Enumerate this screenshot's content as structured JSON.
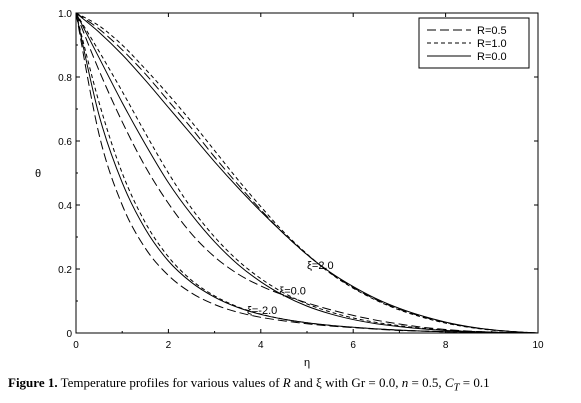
{
  "chart_data": {
    "type": "line",
    "xlabel": "η",
    "ylabel": "θ",
    "xlim": [
      0,
      10
    ],
    "ylim": [
      0,
      1
    ],
    "xticks": [
      "0",
      "2",
      "4",
      "6",
      "8",
      "10"
    ],
    "yticks": [
      "0",
      "0.2",
      "0.4",
      "0.6",
      "0.8",
      "1.0"
    ],
    "grid": false,
    "legend_position": "top-right",
    "legend": [
      {
        "label": "R=0.5",
        "dash": "long-dash"
      },
      {
        "label": "R=1.0",
        "dash": "short-dash"
      },
      {
        "label": "R=0.0",
        "dash": "solid"
      }
    ],
    "annotations": [
      {
        "text": "ξ=2.0",
        "x": 5.0,
        "y": 0.2
      },
      {
        "text": "ξ=0.0",
        "x": 4.4,
        "y": 0.12
      },
      {
        "text": "ξ=-2.0",
        "x": 3.7,
        "y": 0.06
      }
    ],
    "x": [
      0,
      0.5,
      1,
      1.5,
      2,
      2.5,
      3,
      3.5,
      4,
      4.5,
      5,
      5.5,
      6,
      6.5,
      7,
      7.5,
      8,
      8.5,
      9,
      9.5,
      10
    ],
    "series": [
      {
        "dash": "solid",
        "group": "ξ=2.0",
        "values": [
          1.0,
          0.94,
          0.87,
          0.79,
          0.705,
          0.62,
          0.535,
          0.455,
          0.38,
          0.31,
          0.245,
          0.19,
          0.145,
          0.107,
          0.077,
          0.053,
          0.034,
          0.02,
          0.01,
          0.004,
          0
        ]
      },
      {
        "dash": "long-dash",
        "group": "ξ=2.0",
        "values": [
          1.0,
          0.95,
          0.885,
          0.81,
          0.725,
          0.64,
          0.55,
          0.465,
          0.385,
          0.31,
          0.245,
          0.188,
          0.142,
          0.104,
          0.074,
          0.051,
          0.033,
          0.019,
          0.01,
          0.004,
          0
        ]
      },
      {
        "dash": "short-dash",
        "group": "ξ=2.0",
        "values": [
          1.0,
          0.96,
          0.9,
          0.825,
          0.745,
          0.66,
          0.57,
          0.48,
          0.395,
          0.315,
          0.247,
          0.187,
          0.14,
          0.102,
          0.072,
          0.049,
          0.031,
          0.018,
          0.009,
          0.004,
          0
        ]
      },
      {
        "dash": "solid",
        "group": "ξ=0.0",
        "values": [
          1.0,
          0.86,
          0.72,
          0.59,
          0.47,
          0.37,
          0.285,
          0.215,
          0.16,
          0.117,
          0.084,
          0.06,
          0.042,
          0.029,
          0.02,
          0.013,
          0.008,
          0.005,
          0.002,
          0.001,
          0
        ]
      },
      {
        "dash": "long-dash",
        "group": "ξ=0.0",
        "values": [
          1.0,
          0.82,
          0.66,
          0.52,
          0.405,
          0.31,
          0.238,
          0.185,
          0.147,
          0.118,
          0.094,
          0.073,
          0.055,
          0.04,
          0.028,
          0.018,
          0.011,
          0.006,
          0.003,
          0.001,
          0
        ]
      },
      {
        "dash": "short-dash",
        "group": "ξ=0.0",
        "values": [
          1.0,
          0.88,
          0.755,
          0.625,
          0.5,
          0.39,
          0.3,
          0.227,
          0.17,
          0.125,
          0.091,
          0.066,
          0.047,
          0.033,
          0.023,
          0.015,
          0.009,
          0.005,
          0.003,
          0.001,
          0
        ]
      },
      {
        "dash": "solid",
        "group": "ξ=-2.0",
        "values": [
          1.0,
          0.68,
          0.47,
          0.325,
          0.225,
          0.158,
          0.112,
          0.08,
          0.058,
          0.043,
          0.032,
          0.024,
          0.018,
          0.013,
          0.009,
          0.006,
          0.004,
          0.003,
          0.002,
          0.001,
          0
        ]
      },
      {
        "dash": "long-dash",
        "group": "ξ=-2.0",
        "values": [
          1.0,
          0.62,
          0.4,
          0.265,
          0.18,
          0.125,
          0.089,
          0.065,
          0.049,
          0.038,
          0.029,
          0.022,
          0.017,
          0.012,
          0.008,
          0.006,
          0.004,
          0.003,
          0.002,
          0.001,
          0
        ]
      },
      {
        "dash": "short-dash",
        "group": "ξ=-2.0",
        "values": [
          1.0,
          0.72,
          0.5,
          0.345,
          0.238,
          0.165,
          0.116,
          0.082,
          0.059,
          0.043,
          0.032,
          0.024,
          0.018,
          0.013,
          0.009,
          0.006,
          0.004,
          0.003,
          0.002,
          0.001,
          0
        ]
      }
    ]
  },
  "caption": {
    "label": "Figure   1.",
    "text_main": " Temperature profiles for various values of ",
    "var_R": "R",
    "text_and": " and ξ with Gr = 0.0, ",
    "var_n": "n",
    "text_n_val": " = 0.5, ",
    "var_C": "C",
    "var_C_sub": "T",
    "text_C_val": " = 0.1"
  }
}
